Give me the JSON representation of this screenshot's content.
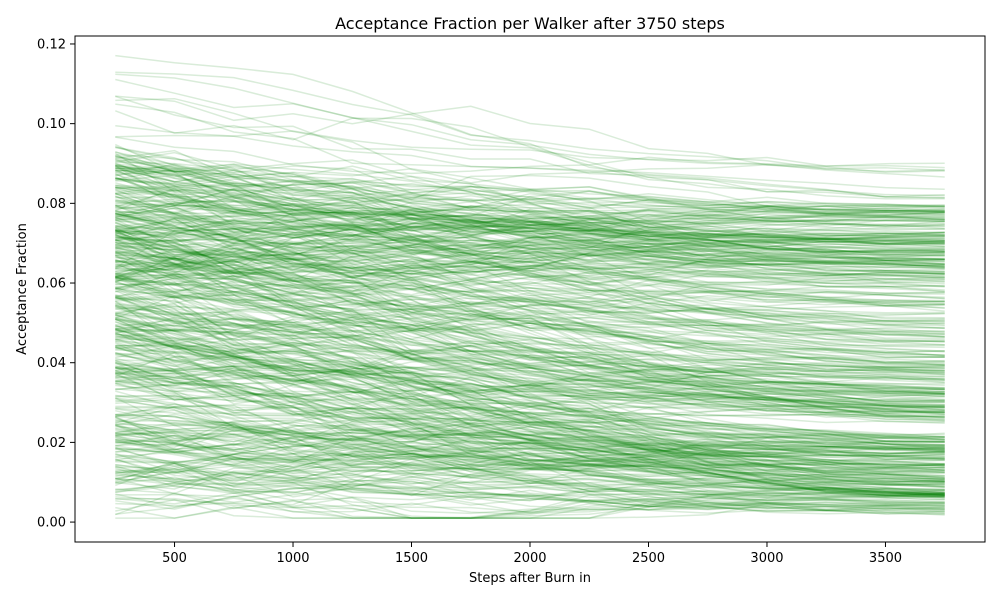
{
  "chart_data": {
    "type": "line",
    "title": "Acceptance Fraction per Walker after 3750 steps",
    "xlabel": "Steps after Burn in",
    "ylabel": "Acceptance Fraction",
    "x": [
      250,
      500,
      750,
      1000,
      1250,
      1500,
      1750,
      2000,
      2250,
      2500,
      2750,
      3000,
      3250,
      3500,
      3750
    ],
    "xlim": [
      80,
      3920
    ],
    "ylim": [
      -0.005,
      0.122
    ],
    "xticks": [
      500,
      1000,
      1500,
      2000,
      2500,
      3000,
      3500
    ],
    "xtick_labels": [
      "500",
      "1000",
      "1500",
      "2000",
      "2500",
      "3000",
      "3500"
    ],
    "yticks": [
      0.0,
      0.02,
      0.04,
      0.06,
      0.08,
      0.1,
      0.12
    ],
    "ytick_labels": [
      "0.00",
      "0.02",
      "0.04",
      "0.06",
      "0.08",
      "0.10",
      "0.12"
    ],
    "line_color": "#008000",
    "line_alpha": 0.15,
    "grid": false,
    "legend": "none",
    "series_groups": [
      {
        "start_range": [
          0.06,
          0.095
        ],
        "end_range": [
          0.062,
          0.08
        ],
        "count": 150
      },
      {
        "start_range": [
          0.045,
          0.09
        ],
        "end_range": [
          0.04,
          0.062
        ],
        "count": 90
      },
      {
        "start_range": [
          0.035,
          0.075
        ],
        "end_range": [
          0.025,
          0.04
        ],
        "count": 110
      },
      {
        "start_range": [
          0.01,
          0.06
        ],
        "end_range": [
          0.006,
          0.022
        ],
        "count": 160
      },
      {
        "start_range": [
          0.001,
          0.025
        ],
        "end_range": [
          0.002,
          0.008
        ],
        "count": 40
      },
      {
        "start_range": [
          0.095,
          0.116
        ],
        "end_range": [
          0.08,
          0.09
        ],
        "count": 12
      }
    ]
  }
}
